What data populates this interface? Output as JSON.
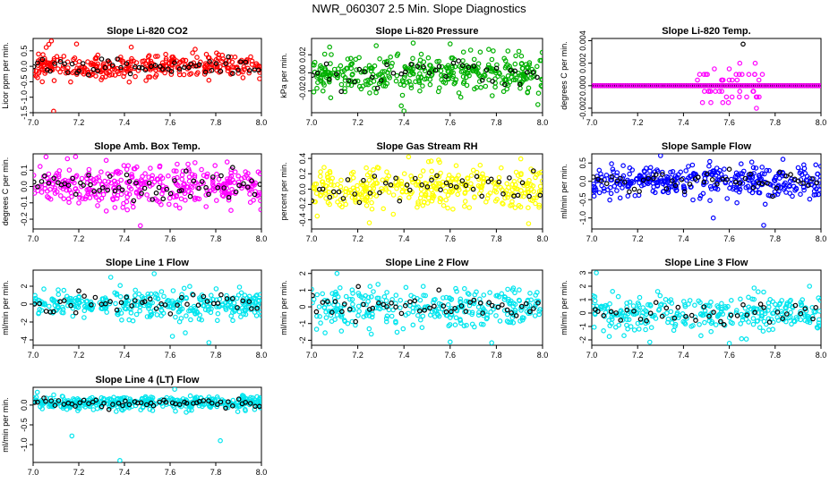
{
  "figure": {
    "title": "NWR_060307  2.5 Min. Slope Diagnostics"
  },
  "chart_data": [
    {
      "type": "scatter",
      "title": "Slope Li-820 CO2",
      "ylabel": "Licor ppm per min.",
      "xlim": [
        7.0,
        8.0
      ],
      "ylim": [
        -1.5,
        0.9
      ],
      "xticks": [
        "7.0",
        "7.2",
        "7.4",
        "7.6",
        "7.8",
        "8.0"
      ],
      "yticks": [
        "-1.5",
        "-1.0",
        "-0.5",
        "0.0",
        "0.5"
      ],
      "yvals": [
        -1.5,
        -1.0,
        -0.5,
        0.0,
        0.5
      ],
      "color": "#ff0000",
      "center": 0.0,
      "spread": 0.2,
      "n": 320,
      "black_n": 55,
      "seed": 11,
      "outliers": [
        [
          7.09,
          -1.45
        ],
        [
          7.08,
          0.82
        ],
        [
          7.19,
          0.72
        ],
        [
          7.43,
          0.62
        ],
        [
          7.77,
          -0.45
        ],
        [
          7.71,
          0.55
        ],
        [
          7.04,
          -0.5
        ]
      ]
    },
    {
      "type": "scatter",
      "title": "Slope Li-820 Pressure",
      "ylabel": "kPa per min.",
      "xlim": [
        7.0,
        8.0
      ],
      "ylim": [
        -0.044,
        0.038
      ],
      "xticks": [
        "7.0",
        "7.2",
        "7.4",
        "7.6",
        "7.8",
        "8.0"
      ],
      "yticks": [
        "-0.02",
        "0.00",
        "0.02"
      ],
      "yvals": [
        -0.02,
        0.0,
        0.02
      ],
      "color": "#00b000",
      "center": 0.0,
      "spread": 0.01,
      "n": 380,
      "black_n": 40,
      "seed": 23,
      "outliers": [
        [
          7.4,
          -0.042
        ],
        [
          7.28,
          0.03
        ],
        [
          7.6,
          0.032
        ],
        [
          7.98,
          -0.035
        ],
        [
          7.44,
          0.033
        ]
      ]
    },
    {
      "type": "scatter",
      "title": "Slope Li-820 Temp.",
      "ylabel": "degrees C per min.",
      "xlim": [
        7.0,
        8.0
      ],
      "ylim": [
        -0.0024,
        0.0042
      ],
      "xticks": [
        "7.0",
        "7.2",
        "7.4",
        "7.6",
        "7.8",
        "8.0"
      ],
      "yticks": [
        "-0.002",
        "0.000",
        "0.002",
        "0.004"
      ],
      "yvals": [
        -0.002,
        0.0,
        0.002,
        0.004
      ],
      "color": "#ff00ff",
      "center": 0.0,
      "spread": 0.0,
      "n": 0,
      "black_n": 0,
      "seed": 5,
      "mode": "quantized",
      "outliers": [
        [
          7.66,
          0.0037
        ]
      ]
    },
    {
      "type": "scatter",
      "title": "Slope Amb. Box Temp.",
      "ylabel": "degrees C per min.",
      "xlim": [
        7.0,
        8.0
      ],
      "ylim": [
        -0.26,
        0.2
      ],
      "xticks": [
        "7.0",
        "7.2",
        "7.4",
        "7.6",
        "7.8",
        "8.0"
      ],
      "yticks": [
        "-0.2",
        "-0.1",
        "0.0",
        "0.1"
      ],
      "yvals": [
        -0.2,
        -0.1,
        0.0,
        0.1
      ],
      "color": "#ff00ff",
      "center": 0.0,
      "spread": 0.06,
      "n": 360,
      "black_n": 60,
      "seed": 37,
      "outliers": [
        [
          7.47,
          -0.24
        ],
        [
          7.15,
          0.17
        ],
        [
          7.32,
          0.16
        ]
      ]
    },
    {
      "type": "scatter",
      "title": "Slope Gas Stream RH",
      "ylabel": "percent per min.",
      "xlim": [
        7.0,
        8.0
      ],
      "ylim": [
        -0.52,
        0.46
      ],
      "xticks": [
        "7.0",
        "7.2",
        "7.4",
        "7.6",
        "7.8",
        "8.0"
      ],
      "yticks": [
        "-0.4",
        "-0.2",
        "0.0",
        "0.2",
        "0.4"
      ],
      "yvals": [
        -0.4,
        -0.2,
        0.0,
        0.2,
        0.4
      ],
      "color": "#ffff00",
      "center": 0.0,
      "spread": 0.14,
      "n": 360,
      "black_n": 45,
      "seed": 41,
      "outliers": [
        [
          7.42,
          0.42
        ],
        [
          7.25,
          -0.44
        ],
        [
          7.55,
          0.38
        ]
      ]
    },
    {
      "type": "scatter",
      "title": "Slope Sample Flow",
      "ylabel": "ml/min per min.",
      "xlim": [
        7.0,
        8.0
      ],
      "ylim": [
        -1.3,
        0.75
      ],
      "xticks": [
        "7.0",
        "7.2",
        "7.4",
        "7.6",
        "7.8",
        "8.0"
      ],
      "yticks": [
        "-1.0",
        "-0.5",
        "0.0",
        "0.5"
      ],
      "yvals": [
        -1.0,
        -0.5,
        0.0,
        0.5
      ],
      "color": "#0000ff",
      "center": 0.0,
      "spread": 0.22,
      "n": 360,
      "black_n": 50,
      "seed": 53,
      "outliers": [
        [
          7.3,
          0.7
        ],
        [
          7.75,
          -1.2
        ],
        [
          7.53,
          -1.0
        ]
      ]
    },
    {
      "type": "scatter",
      "title": "Slope Line 1 Flow",
      "ylabel": "ml/min per min.",
      "xlim": [
        7.0,
        8.0
      ],
      "ylim": [
        -4.6,
        3.8
      ],
      "xticks": [
        "7.0",
        "7.2",
        "7.4",
        "7.6",
        "7.8",
        "8.0"
      ],
      "yticks": [
        "-4",
        "-2",
        "0",
        "2"
      ],
      "yvals": [
        -4,
        -2,
        0,
        2
      ],
      "color": "#00e5ee",
      "center": 0.0,
      "spread": 0.8,
      "n": 340,
      "black_n": 45,
      "seed": 61,
      "outliers": [
        [
          7.53,
          3.4
        ],
        [
          7.34,
          3.0
        ],
        [
          7.77,
          -4.3
        ],
        [
          7.61,
          -3.6
        ]
      ]
    },
    {
      "type": "scatter",
      "title": "Slope Line 2 Flow",
      "ylabel": "ml/min per min.",
      "xlim": [
        7.0,
        8.0
      ],
      "ylim": [
        -2.3,
        2.2
      ],
      "xticks": [
        "7.0",
        "7.2",
        "7.4",
        "7.6",
        "7.8",
        "8.0"
      ],
      "yticks": [
        "-2",
        "-1",
        "0",
        "1",
        "2"
      ],
      "yvals": [
        -2,
        -1,
        0,
        1,
        2
      ],
      "color": "#00e5ee",
      "center": 0.0,
      "spread": 0.6,
      "n": 300,
      "black_n": 50,
      "seed": 71,
      "outliers": [
        [
          7.11,
          2.0
        ],
        [
          7.6,
          -2.1
        ],
        [
          7.78,
          -2.15
        ]
      ]
    },
    {
      "type": "scatter",
      "title": "Slope Line 3 Flow",
      "ylabel": "ml/min per min.",
      "xlim": [
        7.0,
        8.0
      ],
      "ylim": [
        -2.4,
        3.2
      ],
      "xticks": [
        "7.0",
        "7.2",
        "7.4",
        "7.6",
        "7.8",
        "8.0"
      ],
      "yticks": [
        "-2",
        "-1",
        "0",
        "1",
        "2",
        "3"
      ],
      "yvals": [
        -2,
        -1,
        0,
        1,
        2,
        3
      ],
      "color": "#00e5ee",
      "center": 0.0,
      "spread": 0.65,
      "n": 300,
      "black_n": 40,
      "seed": 83,
      "outliers": [
        [
          7.02,
          3.0
        ],
        [
          7.6,
          -2.25
        ],
        [
          7.95,
          2.0
        ]
      ]
    },
    {
      "type": "scatter",
      "title": "Slope Line 4 (LT) Flow",
      "ylabel": "ml/min per min.",
      "xlim": [
        7.0,
        8.0
      ],
      "ylim": [
        -1.45,
        0.45
      ],
      "xticks": [
        "7.0",
        "7.2",
        "7.4",
        "7.6",
        "7.8",
        "8.0"
      ],
      "yticks": [
        "-1.0",
        "-0.5",
        "0.0"
      ],
      "yvals": [
        -1.0,
        -0.5,
        0.0
      ],
      "color": "#00e5ee",
      "center": 0.05,
      "spread": 0.09,
      "n": 380,
      "black_n": 55,
      "seed": 97,
      "outliers": [
        [
          7.38,
          -1.4
        ],
        [
          7.17,
          -0.78
        ],
        [
          7.82,
          -0.9
        ],
        [
          7.62,
          0.4
        ]
      ]
    }
  ]
}
